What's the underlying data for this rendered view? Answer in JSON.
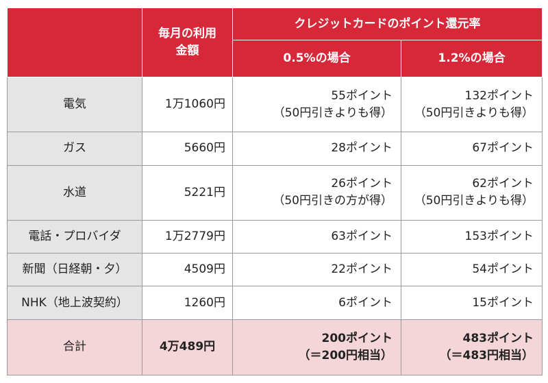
{
  "header": {
    "monthly_line1": "毎月の利用",
    "monthly_line2": "金額",
    "rate_title": "クレジットカードのポイント還元率",
    "rate_a": "0.5%の場合",
    "rate_b": "1.2%の場合"
  },
  "rows": [
    {
      "label": "電気",
      "amount": "1万1060円",
      "a_main": "55ポイント",
      "a_note": "（50円引きよりも得）",
      "b_main": "132ポイント",
      "b_note": "（50円引きよりも得）"
    },
    {
      "label": "ガス",
      "amount": "5660円",
      "a_main": "28ポイント",
      "b_main": "67ポイント"
    },
    {
      "label": "水道",
      "amount": "5221円",
      "a_main": "26ポイント",
      "a_note": "（50円引きの方が得）",
      "b_main": "62ポイント",
      "b_note": "（50円引きよりも得）"
    },
    {
      "label": "電話・プロバイダ",
      "amount": "1万2779円",
      "a_main": "63ポイント",
      "b_main": "153ポイント"
    },
    {
      "label": "新聞（日経朝・夕）",
      "amount": "4509円",
      "a_main": "22ポイント",
      "b_main": "54ポイント"
    },
    {
      "label": "NHK（地上波契約）",
      "amount": "1260円",
      "a_main": "6ポイント",
      "b_main": "15ポイント"
    }
  ],
  "total": {
    "label": "合計",
    "amount": "4万489円",
    "a_main": "200ポイント",
    "a_note": "（＝200円相当）",
    "b_main": "483ポイント",
    "b_note": "（＝483円相当）"
  },
  "colors": {
    "header_red": "#d7283a",
    "label_gray": "#e5e5e5",
    "total_pink": "#f4d6d8"
  }
}
